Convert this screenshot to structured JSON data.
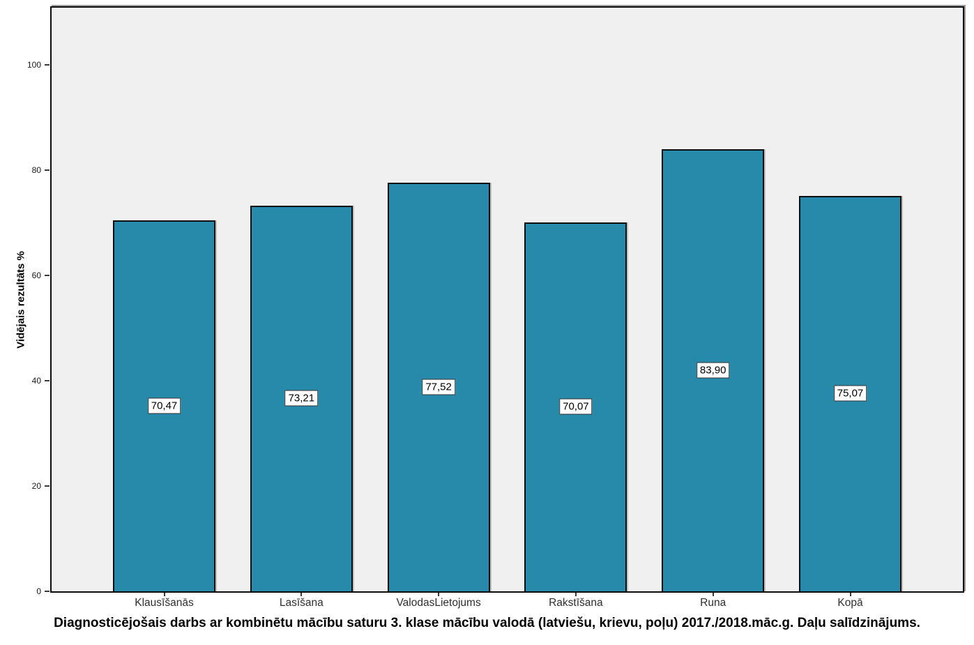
{
  "chart_data": {
    "type": "bar",
    "title": "Diagnosticējošais darbs ar kombinētu mācību saturu 3. klase mācību valodā (latviešu, krievu, poļu) 2017./2018.māc.g. Daļu salīdzinājums.",
    "ylabel": "Vidējais rezultāts %",
    "xlabel": "",
    "categories": [
      "Klausīšanās",
      "Lasīšana",
      "ValodasLietojums",
      "Rakstīšana",
      "Runa",
      "Kopā"
    ],
    "values": [
      70.47,
      73.21,
      77.52,
      70.07,
      83.9,
      75.07
    ],
    "value_labels": [
      "70,47",
      "73,21",
      "77,52",
      "70,07",
      "83,90",
      "75,07"
    ],
    "yticks": [
      0,
      20,
      40,
      60,
      80,
      100
    ],
    "ylim": [
      0,
      110.8
    ],
    "grid": false,
    "legend": null,
    "bar_color": "#288AAA",
    "plot_background": "#f0f0f0",
    "page_background": "#ffffff",
    "value_label_position": "middle-of-bar"
  }
}
